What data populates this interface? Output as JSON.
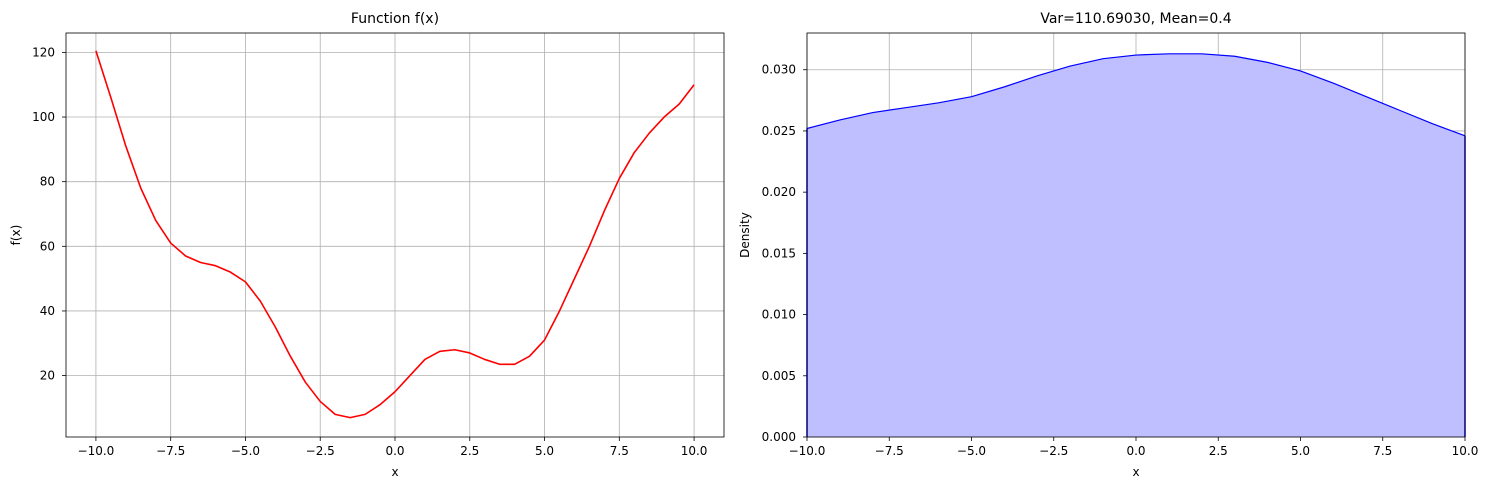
{
  "chart_data": [
    {
      "type": "line",
      "title": "Function f(x)",
      "xlabel": "x",
      "ylabel": "f(x)",
      "xlim": [
        -11.0,
        11.0
      ],
      "ylim": [
        1.0,
        126.0
      ],
      "xticks": [
        -10.0,
        -7.5,
        -5.0,
        -2.5,
        0.0,
        2.5,
        5.0,
        7.5,
        10.0
      ],
      "xtick_labels": [
        "−10.0",
        "−7.5",
        "−5.0",
        "−2.5",
        "0.0",
        "2.5",
        "5.0",
        "7.5",
        "10.0"
      ],
      "yticks": [
        20,
        40,
        60,
        80,
        100,
        120
      ],
      "ytick_labels": [
        "20",
        "40",
        "60",
        "80",
        "100",
        "120"
      ],
      "grid": true,
      "series": [
        {
          "color": "#ff0000",
          "x": [
            -10,
            -9.5,
            -9,
            -8.5,
            -8,
            -7.5,
            -7,
            -6.5,
            -6,
            -5.5,
            -5,
            -4.5,
            -4,
            -3.5,
            -3,
            -2.5,
            -2,
            -1.5,
            -1,
            -0.5,
            0,
            0.5,
            1,
            1.5,
            2,
            2.5,
            3,
            3.5,
            4,
            4.5,
            5,
            5.5,
            6,
            6.5,
            7,
            7.5,
            8,
            8.5,
            9,
            9.5,
            10
          ],
          "y": [
            120.5,
            106,
            91,
            78,
            68,
            61,
            57,
            55,
            54,
            52,
            49,
            43,
            35,
            26,
            18,
            12,
            8,
            7,
            8,
            11,
            15,
            20,
            25,
            27.5,
            28,
            27,
            25,
            23.5,
            23.5,
            26,
            31,
            40,
            50,
            60,
            71,
            81,
            89,
            95,
            100,
            104,
            110
          ]
        }
      ]
    },
    {
      "type": "area",
      "title": "Var=110.69030, Mean=0.4",
      "xlabel": "x",
      "ylabel": "Density",
      "xlim": [
        -10.0,
        10.0
      ],
      "ylim": [
        0.0,
        0.033
      ],
      "xticks": [
        -10.0,
        -7.5,
        -5.0,
        -2.5,
        0.0,
        2.5,
        5.0,
        7.5,
        10.0
      ],
      "xtick_labels": [
        "−10.0",
        "−7.5",
        "−5.0",
        "−2.5",
        "0.0",
        "2.5",
        "5.0",
        "7.5",
        "10.0"
      ],
      "yticks": [
        0.0,
        0.005,
        0.01,
        0.015,
        0.02,
        0.025,
        0.03
      ],
      "ytick_labels": [
        "0.000",
        "0.005",
        "0.010",
        "0.015",
        "0.020",
        "0.025",
        "0.030"
      ],
      "grid": true,
      "series": [
        {
          "line_color": "#0000ff",
          "fill_color": "#bfbfff",
          "x": [
            -10,
            -9,
            -8,
            -7,
            -6,
            -5,
            -4,
            -3,
            -2,
            -1,
            0,
            1,
            2,
            3,
            4,
            5,
            6,
            7,
            8,
            9,
            10
          ],
          "y": [
            0.0252,
            0.0259,
            0.0265,
            0.0269,
            0.0273,
            0.0278,
            0.0286,
            0.0295,
            0.0303,
            0.0309,
            0.0312,
            0.0313,
            0.0313,
            0.0311,
            0.0306,
            0.0299,
            0.0289,
            0.0278,
            0.0267,
            0.0256,
            0.0246
          ]
        }
      ]
    }
  ]
}
